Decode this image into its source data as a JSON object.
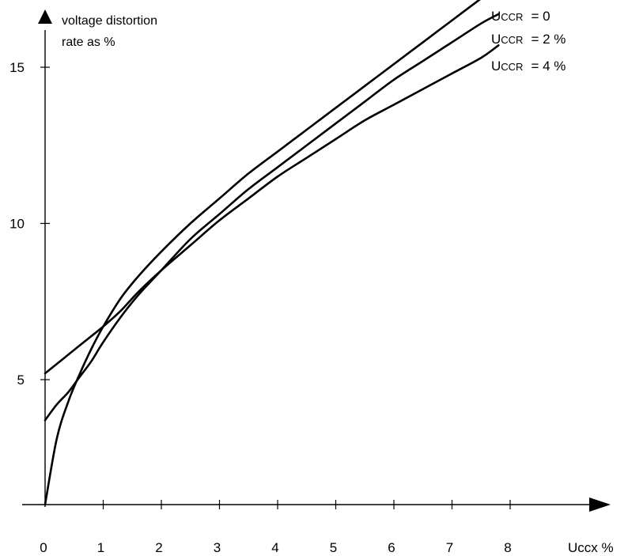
{
  "chart_data": {
    "type": "line",
    "title": "",
    "ylabel_lines": [
      "voltage distortion",
      "rate as %"
    ],
    "xlabel": "Uccx %",
    "xlim": [
      0,
      9.5
    ],
    "ylim": [
      1,
      18.2
    ],
    "x_ticks": [
      0,
      1,
      2,
      3,
      4,
      5,
      6,
      7,
      8
    ],
    "x_tick_labels": [
      "0",
      "1",
      "2",
      "3",
      "4",
      "5",
      "6",
      "7",
      "8"
    ],
    "y_ticks": [
      5,
      10,
      15
    ],
    "y_tick_labels": [
      "5",
      "10",
      "15"
    ],
    "grid": false,
    "legend_placement": "inline at the end of each curve (top-right)",
    "series": [
      {
        "name": "Uccr = 0",
        "label_main": "U",
        "label_sub": "CCR",
        "label_value": "= 0",
        "x": [
          0,
          0.2,
          0.4,
          0.6,
          0.8,
          1,
          1.3,
          1.6,
          2,
          2.5,
          3,
          3.5,
          4,
          4.5,
          5,
          5.5,
          6,
          6.5,
          7,
          7.5,
          7.65
        ],
        "y": [
          1.0,
          3.1,
          4.3,
          5.2,
          6.0,
          6.7,
          7.6,
          8.3,
          9.1,
          10.0,
          10.8,
          11.6,
          12.3,
          13.0,
          13.7,
          14.4,
          15.1,
          15.8,
          16.5,
          17.2,
          17.4
        ]
      },
      {
        "name": "Uccr = 2 %",
        "label_main": "U",
        "label_sub": "CCR",
        "label_value": "= 2 %",
        "x": [
          0,
          0.2,
          0.4,
          0.6,
          0.8,
          1,
          1.3,
          1.6,
          2,
          2.5,
          3,
          3.5,
          4,
          4.5,
          5,
          5.5,
          6,
          6.5,
          7,
          7.5,
          7.8
        ],
        "y": [
          3.7,
          4.2,
          4.6,
          5.1,
          5.6,
          6.2,
          7.0,
          7.7,
          8.5,
          9.5,
          10.3,
          11.1,
          11.8,
          12.5,
          13.2,
          13.9,
          14.6,
          15.2,
          15.8,
          16.4,
          16.7
        ]
      },
      {
        "name": "Uccr = 4 %",
        "label_main": "U",
        "label_sub": "CCR",
        "label_value": "= 4 %",
        "x": [
          0,
          0.2,
          0.4,
          0.6,
          0.8,
          1,
          1.3,
          1.6,
          2,
          2.5,
          3,
          3.5,
          4,
          4.5,
          5,
          5.5,
          6,
          6.5,
          7,
          7.5,
          7.8
        ],
        "y": [
          5.2,
          5.5,
          5.8,
          6.1,
          6.4,
          6.7,
          7.2,
          7.8,
          8.5,
          9.3,
          10.1,
          10.8,
          11.5,
          12.1,
          12.7,
          13.3,
          13.8,
          14.3,
          14.8,
          15.3,
          15.7
        ]
      }
    ]
  }
}
